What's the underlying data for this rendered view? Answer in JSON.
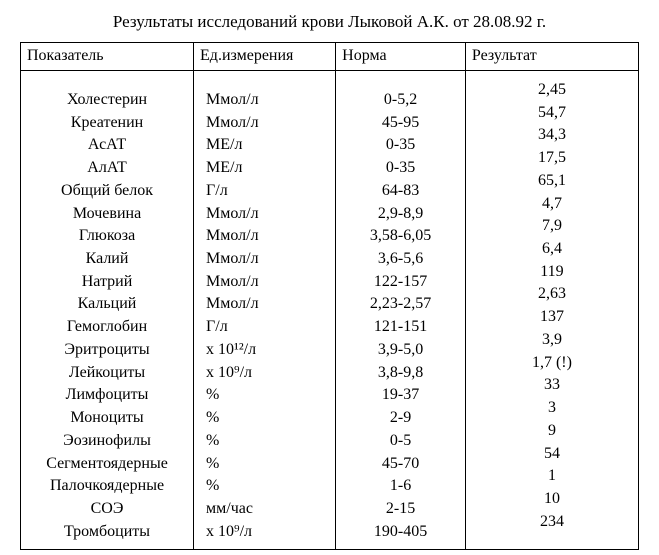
{
  "title": "Результаты исследований крови Лыковой А.К. от 28.08.92 г.",
  "headers": {
    "indicator": "Показатель",
    "unit": "Ед.измерения",
    "norm": "Норма",
    "result": "Результат"
  },
  "rows": [
    {
      "indicator": "Холестерин",
      "unit": "Ммол/л",
      "norm": "0-5,2",
      "result": "2,45"
    },
    {
      "indicator": "Креатенин",
      "unit": "Ммол/л",
      "norm": "45-95",
      "result": "54,7"
    },
    {
      "indicator": "АсАТ",
      "unit": "МЕ/л",
      "norm": "0-35",
      "result": "34,3"
    },
    {
      "indicator": "АлАТ",
      "unit": "МЕ/л",
      "norm": "0-35",
      "result": "17,5"
    },
    {
      "indicator": "Общий белок",
      "unit": "Г/л",
      "norm": "64-83",
      "result": "65,1"
    },
    {
      "indicator": "Мочевина",
      "unit": "Ммол/л",
      "norm": "2,9-8,9",
      "result": "4,7"
    },
    {
      "indicator": "Глюкоза",
      "unit": "Ммол/л",
      "norm": "3,58-6,05",
      "result": "7,9"
    },
    {
      "indicator": "Калий",
      "unit": "Ммол/л",
      "norm": "3,6-5,6",
      "result": "6,4"
    },
    {
      "indicator": "Натрий",
      "unit": "Ммол/л",
      "norm": "122-157",
      "result": "119"
    },
    {
      "indicator": "Кальций",
      "unit": "Ммол/л",
      "norm": "2,23-2,57",
      "result": "2,63"
    },
    {
      "indicator": "Гемоглобин",
      "unit": "Г/л",
      "norm": "121-151",
      "result": "137"
    },
    {
      "indicator": "Эритроциты",
      "unit": "x 10¹²/л",
      "norm": "3,9-5,0",
      "result": "3,9"
    },
    {
      "indicator": "Лейкоциты",
      "unit": "x 10⁹/л",
      "norm": "3,8-9,8",
      "result": "1,7 (!)"
    },
    {
      "indicator": "Лимфоциты",
      "unit": "%",
      "norm": "19-37",
      "result": "33"
    },
    {
      "indicator": "Моноциты",
      "unit": "%",
      "norm": "2-9",
      "result": "3"
    },
    {
      "indicator": "Эозинофилы",
      "unit": "%",
      "norm": "0-5",
      "result": "9"
    },
    {
      "indicator": "Сегментоядерные",
      "unit": "%",
      "norm": "45-70",
      "result": "54"
    },
    {
      "indicator": "Палочкоядерные",
      "unit": "%",
      "norm": "1-6",
      "result": "1"
    },
    {
      "indicator": "СОЭ",
      "unit": "мм/час",
      "norm": "2-15",
      "result": "10"
    },
    {
      "indicator": "Тромбоциты",
      "unit": "x 10⁹/л",
      "norm": "190-405",
      "result": "234"
    }
  ],
  "style": {
    "font_family": "Times New Roman",
    "title_fontsize": 17,
    "cell_fontsize": 16,
    "background_color": "#ffffff",
    "text_color": "#000000",
    "border_color": "#000000"
  }
}
